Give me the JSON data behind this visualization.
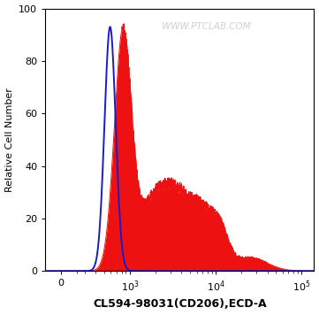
{
  "title": "",
  "xlabel": "CL594-98031(CD206),ECD-A",
  "ylabel": "Relative Cell Number",
  "ylim": [
    0,
    100
  ],
  "yticks": [
    0,
    20,
    40,
    60,
    80,
    100
  ],
  "background_color": "#ffffff",
  "plot_bg_color": "#ffffff",
  "blue_color": "#1a1acc",
  "red_color": "#ee1111",
  "watermark": "WWW.PTCLAB.COM",
  "watermark_color": "#c8c8c8",
  "xlabel_fontsize": 9,
  "ylabel_fontsize": 8,
  "tick_fontsize": 8,
  "linthresh": 300,
  "linscale": 0.25
}
